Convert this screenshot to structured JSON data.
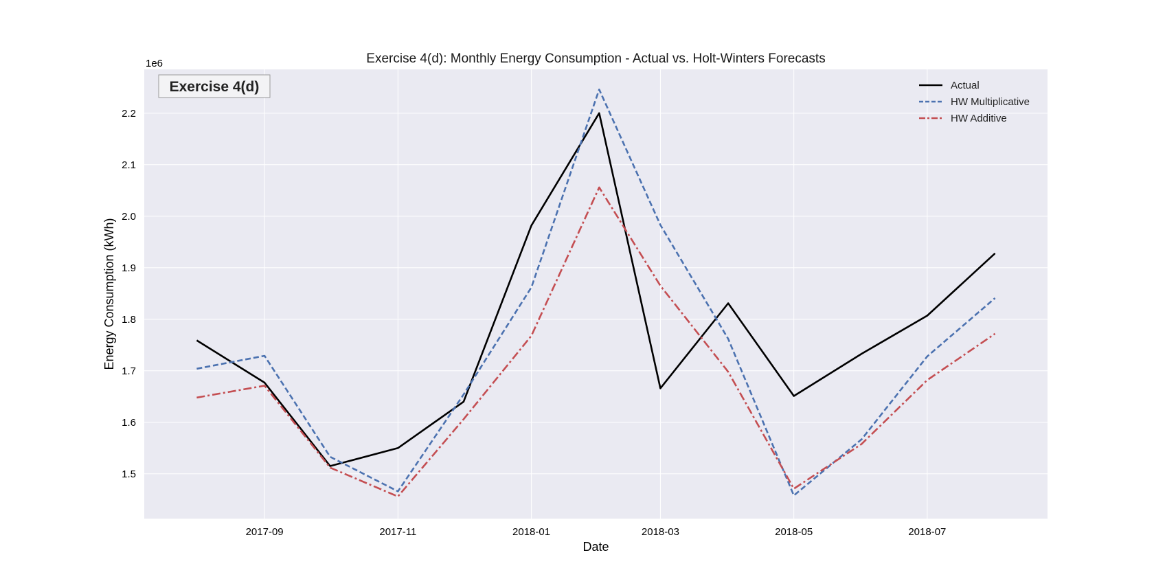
{
  "chart_data": {
    "type": "line",
    "title": "Exercise 4(d): Monthly Energy Consumption - Actual vs. Holt-Winters Forecasts",
    "xlabel": "Date",
    "ylabel": "Energy Consumption (kWh)",
    "y_offset_label": "1e6",
    "annotation": "Exercise 4(d)",
    "legend_position": "top-right",
    "grid": true,
    "x": [
      "2017-08",
      "2017-09",
      "2017-10",
      "2017-11",
      "2017-12",
      "2018-01",
      "2018-02",
      "2018-03",
      "2018-04",
      "2018-05",
      "2018-06",
      "2018-07",
      "2018-08"
    ],
    "xlim": [
      "2017-07-08",
      "2018-08-25"
    ],
    "ylim": [
      1.413,
      2.285
    ],
    "x_ticks": [
      "2017-09",
      "2017-11",
      "2018-01",
      "2018-03",
      "2018-05",
      "2018-07"
    ],
    "y_ticks": [
      "1.5",
      "1.6",
      "1.7",
      "1.8",
      "1.9",
      "2.0",
      "2.1",
      "2.2"
    ],
    "y_tick_values": [
      1.5,
      1.6,
      1.7,
      1.8,
      1.9,
      2.0,
      2.1,
      2.2
    ],
    "series": [
      {
        "name": "Actual",
        "color": "#000000",
        "dash": "solid",
        "values": [
          1.759,
          1.677,
          1.515,
          1.55,
          1.64,
          1.982,
          2.2,
          1.666,
          1.831,
          1.651,
          1.733,
          1.807,
          1.928
        ]
      },
      {
        "name": "HW Multiplicative",
        "color": "#4c72b0",
        "dash": "dashed",
        "values": [
          1.704,
          1.729,
          1.533,
          1.466,
          1.654,
          1.862,
          2.246,
          1.983,
          1.762,
          1.458,
          1.567,
          1.728,
          1.841
        ]
      },
      {
        "name": "HW Additive",
        "color": "#c44e52",
        "dash": "dashdot",
        "values": [
          1.648,
          1.671,
          1.512,
          1.456,
          1.606,
          1.768,
          2.056,
          1.865,
          1.698,
          1.471,
          1.558,
          1.682,
          1.772
        ]
      }
    ]
  }
}
